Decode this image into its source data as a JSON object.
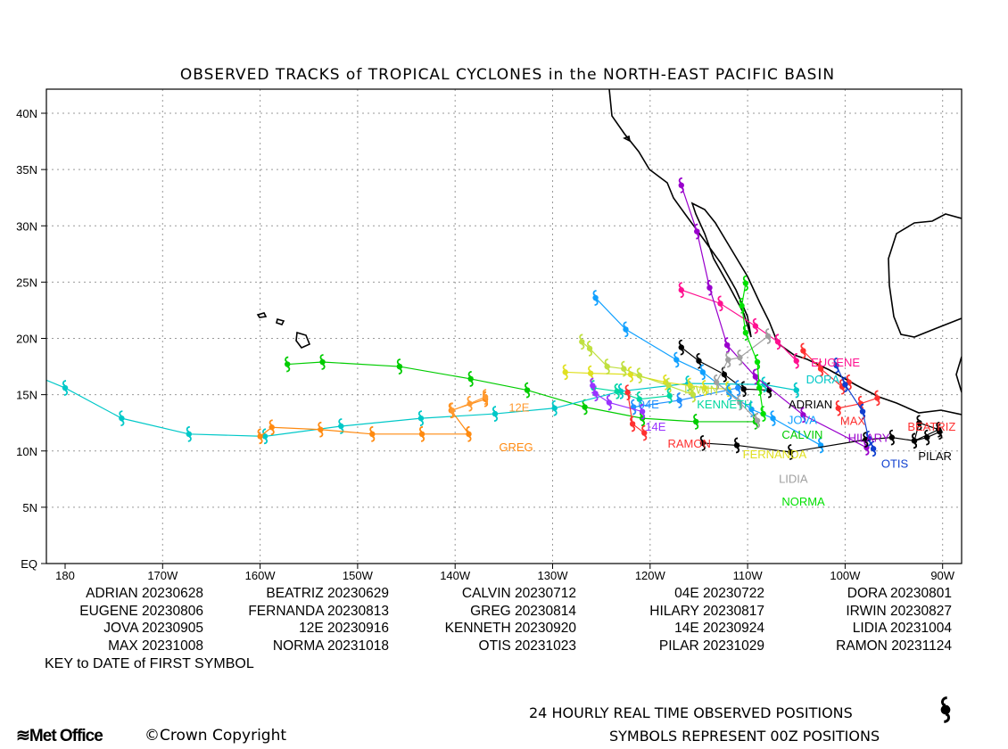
{
  "title": "OBSERVED TRACKS of TROPICAL CYCLONES in the NORTH-EAST PACIFIC BASIN",
  "chart_data": {
    "type": "map-tracks",
    "title": "OBSERVED TRACKS of TROPICAL CYCLONES in the NORTH-EAST PACIFIC BASIN",
    "lon_range_degW": [
      181.9,
      88.1
    ],
    "lat_range": [
      0,
      42.1
    ],
    "grid": true,
    "x_ticks": [
      {
        "v": 180,
        "label": "180"
      },
      {
        "v": 170,
        "label": "170W"
      },
      {
        "v": 160,
        "label": "160W"
      },
      {
        "v": 150,
        "label": "150W"
      },
      {
        "v": 140,
        "label": "140W"
      },
      {
        "v": 130,
        "label": "130W"
      },
      {
        "v": 120,
        "label": "120W"
      },
      {
        "v": 110,
        "label": "110W"
      },
      {
        "v": 100,
        "label": "100W"
      },
      {
        "v": 90,
        "label": "90W"
      }
    ],
    "y_ticks": [
      {
        "v": 0,
        "label": "EQ"
      },
      {
        "v": 5,
        "label": "5N"
      },
      {
        "v": 10,
        "label": "10N"
      },
      {
        "v": 15,
        "label": "15N"
      },
      {
        "v": 20,
        "label": "20N"
      },
      {
        "v": 25,
        "label": "25N"
      },
      {
        "v": 30,
        "label": "30N"
      },
      {
        "v": 35,
        "label": "35N"
      },
      {
        "v": 40,
        "label": "40N"
      }
    ],
    "storms": [
      {
        "name": "ADRIAN",
        "color": "#000000",
        "label_at": [
          105.8,
          13.8
        ],
        "track": [
          [
            116.8,
            19.2
          ],
          [
            115,
            18.0
          ],
          [
            112.4,
            16.8
          ],
          [
            110.4,
            15.5
          ],
          [
            107.8,
            15.4
          ]
        ]
      },
      {
        "name": "BEATRIZ",
        "color": "#ff3030",
        "label_at": [
          93.6,
          11.8
        ],
        "track": [
          [
            99.6,
            16.1
          ],
          [
            100.3,
            15.7
          ],
          [
            102.5,
            17.3
          ],
          [
            104.3,
            18.9
          ]
        ]
      },
      {
        "name": "CALVIN",
        "color": "#00cc00",
        "label_at": [
          106.5,
          11.1
        ],
        "track": [
          [
            109.2,
            12.6
          ],
          [
            115.3,
            12.6
          ],
          [
            120.8,
            12.9
          ],
          [
            126.7,
            13.9
          ],
          [
            132.6,
            15.4
          ],
          [
            138.4,
            16.4
          ],
          [
            145.7,
            17.5
          ],
          [
            153.6,
            17.9
          ],
          [
            157.2,
            17.7
          ]
        ]
      },
      {
        "name": "04E",
        "color": "#2090ff",
        "label_at": [
          121.2,
          13.8
        ],
        "track": [
          [
            111,
            15.6
          ],
          [
            117,
            14.5
          ],
          [
            121.7,
            13.9
          ]
        ]
      },
      {
        "name": "DORA",
        "color": "#00c8c8",
        "label_at": [
          104,
          13.8
        ],
        "track": [
          [
            105,
            15.4
          ],
          [
            108.3,
            15.9
          ],
          [
            116.1,
            16.0
          ],
          [
            123,
            15.3
          ],
          [
            129.8,
            13.8
          ],
          [
            135.9,
            13.3
          ],
          [
            143.5,
            12.9
          ],
          [
            151.7,
            12.2
          ],
          [
            159.5,
            11.3
          ],
          [
            167.3,
            11.5
          ],
          [
            174.2,
            12.9
          ],
          [
            180,
            15.6
          ],
          [
            186.7,
            18.0
          ]
        ]
      },
      {
        "name": "EUGENE",
        "color": "#ff1090",
        "label_at": [
          103.5,
          16.4
        ],
        "track": [
          [
            116.8,
            24.3
          ],
          [
            112.8,
            23.1
          ],
          [
            109.2,
            21.1
          ],
          [
            106.9,
            19.7
          ],
          [
            105,
            18.0
          ]
        ]
      },
      {
        "name": "FERNANDA",
        "color": "#e0e020",
        "label_at": [
          110.5,
          13.8
        ],
        "track": [
          [
            112,
            15.5
          ],
          [
            114.4,
            15.6
          ],
          [
            115.9,
            15.8
          ],
          [
            118.4,
            16.1
          ],
          [
            122,
            16.8
          ],
          [
            126.1,
            16.9
          ],
          [
            128.7,
            17.0
          ]
        ]
      },
      {
        "name": "GREG",
        "color": "#ff8a10",
        "label_at": [
          135.5,
          10.0
        ],
        "track": [
          [
            136.9,
            14.6
          ],
          [
            140.4,
            13.6
          ],
          [
            138.6,
            11.5
          ],
          [
            143.4,
            11.5
          ],
          [
            148.5,
            11.5
          ],
          [
            153.8,
            11.9
          ],
          [
            158.8,
            12.1
          ],
          [
            160,
            11.3
          ]
        ]
      },
      {
        "name": "HILARY",
        "color": "#9900cc",
        "label_at": [
          99.7,
          10.8
        ],
        "track": [
          [
            97.8,
            10.3
          ],
          [
            104.3,
            13.2
          ],
          [
            109.2,
            16.6
          ],
          [
            112.1,
            19.4
          ],
          [
            113.9,
            24.5
          ],
          [
            115.2,
            29.5
          ],
          [
            116.8,
            33.6
          ]
        ]
      },
      {
        "name": "IRWIN",
        "color": "#c0e040",
        "label_at": [
          116.5,
          15.1
        ],
        "track": [
          [
            115.6,
            15.0
          ],
          [
            118.1,
            15.8
          ],
          [
            121.1,
            16.7
          ],
          [
            122.7,
            17.3
          ],
          [
            124.4,
            17.5
          ],
          [
            126.2,
            19.1
          ],
          [
            127,
            19.7
          ]
        ]
      },
      {
        "name": "JOVA",
        "color": "#10a0ff",
        "label_at": [
          105.9,
          11.3
        ],
        "track": [
          [
            102.5,
            10.5
          ],
          [
            107.4,
            12.9
          ],
          [
            109.6,
            13.7
          ],
          [
            111.9,
            15.2
          ],
          [
            114.6,
            17.0
          ],
          [
            117.3,
            18.1
          ],
          [
            122.5,
            20.8
          ],
          [
            125.6,
            23.6
          ]
        ]
      },
      {
        "name": "12E",
        "color": "#ff9a30",
        "label_at": [
          134.5,
          13.5
        ],
        "track": [
          [
            136.9,
            14.8
          ],
          [
            138.5,
            14.2
          ],
          [
            140.3,
            13.6
          ]
        ]
      },
      {
        "name": "KENNETH",
        "color": "#00d8a0",
        "label_at": [
          115.2,
          13.8
        ],
        "track": [
          [
            118,
            14.9
          ],
          [
            121.1,
            14.6
          ],
          [
            123.4,
            15.3
          ],
          [
            125.8,
            15.6
          ]
        ]
      },
      {
        "name": "14E",
        "color": "#9933ff",
        "label_at": [
          120.5,
          12.9
        ],
        "track": [
          [
            120.8,
            13.5
          ],
          [
            124.2,
            14.3
          ],
          [
            125.6,
            15.1
          ],
          [
            125.9,
            15.8
          ]
        ]
      },
      {
        "name": "LIDIA",
        "color": "#a0a0a0",
        "label_at": [
          106.8,
          10.5
        ],
        "track": [
          [
            109,
            12.7
          ],
          [
            110.8,
            14.3
          ],
          [
            113.2,
            16.1
          ],
          [
            112,
            18.1
          ],
          [
            110.8,
            18.3
          ],
          [
            107.9,
            20.2
          ]
        ]
      },
      {
        "name": "MAX",
        "color": "#ff3030",
        "label_at": [
          100.5,
          12.3
        ],
        "track": [
          [
            100.7,
            13.8
          ],
          [
            98.4,
            14.2
          ],
          [
            96.7,
            14.7
          ]
        ]
      },
      {
        "name": "NORMA",
        "color": "#00e000",
        "label_at": [
          106.5,
          11.8
        ],
        "track": [
          [
            108.4,
            13.3
          ],
          [
            108.8,
            15.6
          ],
          [
            109,
            17.9
          ],
          [
            110.2,
            20.5
          ],
          [
            110.6,
            22.9
          ],
          [
            110.2,
            24.9
          ]
        ]
      },
      {
        "name": "OTIS",
        "color": "#1040d0",
        "label_at": [
          96.3,
          8.5
        ],
        "track": [
          [
            97.1,
            10.2
          ],
          [
            97.6,
            11.1
          ],
          [
            98.2,
            13.5
          ],
          [
            100,
            15.9
          ],
          [
            100.9,
            17.6
          ]
        ]
      },
      {
        "name": "PILAR",
        "color": "#000000",
        "label_at": [
          92.5,
          9.2
        ],
        "track": [
          [
            90.3,
            11.7
          ],
          [
            91.6,
            11.2
          ],
          [
            92.9,
            10.9
          ],
          [
            92.4,
            12.5
          ],
          [
            90.4,
            11.9
          ],
          [
            92.9,
            10.9
          ],
          [
            95.2,
            11.2
          ],
          [
            97.9,
            11.0
          ],
          [
            105.6,
            9.9
          ],
          [
            111.1,
            10.5
          ],
          [
            114.6,
            10.7
          ]
        ]
      },
      {
        "name": "RAMON",
        "color": "#ff3030",
        "label_at": [
          118.2,
          10.3
        ],
        "track": [
          [
            122.3,
            15.2
          ],
          [
            121.8,
            12.4
          ],
          [
            120.6,
            11.6
          ]
        ]
      }
    ]
  },
  "key": {
    "items": [
      {
        "name": "ADRIAN",
        "date": "20230628"
      },
      {
        "name": "BEATRIZ",
        "date": "20230629"
      },
      {
        "name": "CALVIN",
        "date": "20230712"
      },
      {
        "name": "04E",
        "date": "20230722"
      },
      {
        "name": "DORA",
        "date": "20230801"
      },
      {
        "name": "EUGENE",
        "date": "20230806"
      },
      {
        "name": "FERNANDA",
        "date": "20230813"
      },
      {
        "name": "GREG",
        "date": "20230814"
      },
      {
        "name": "HILARY",
        "date": "20230817"
      },
      {
        "name": "IRWIN",
        "date": "20230827"
      },
      {
        "name": "JOVA",
        "date": "20230905"
      },
      {
        "name": "12E",
        "date": "20230916"
      },
      {
        "name": "KENNETH",
        "date": "20230920"
      },
      {
        "name": "14E",
        "date": "20230924"
      },
      {
        "name": "LIDIA",
        "date": "20231004"
      },
      {
        "name": "MAX",
        "date": "20231008"
      },
      {
        "name": "NORMA",
        "date": "20231018"
      },
      {
        "name": "OTIS",
        "date": "20231023"
      },
      {
        "name": "PILAR",
        "date": "20231029"
      },
      {
        "name": "RAMON",
        "date": "20231124"
      }
    ],
    "title": "KEY to DATE of FIRST SYMBOL"
  },
  "footer": {
    "line1": "24 HOURLY REAL TIME OBSERVED POSITIONS",
    "line2": "SYMBOLS REPRESENT 00Z POSITIONS",
    "logo": "Met Office",
    "copyright": "©Crown Copyright"
  }
}
